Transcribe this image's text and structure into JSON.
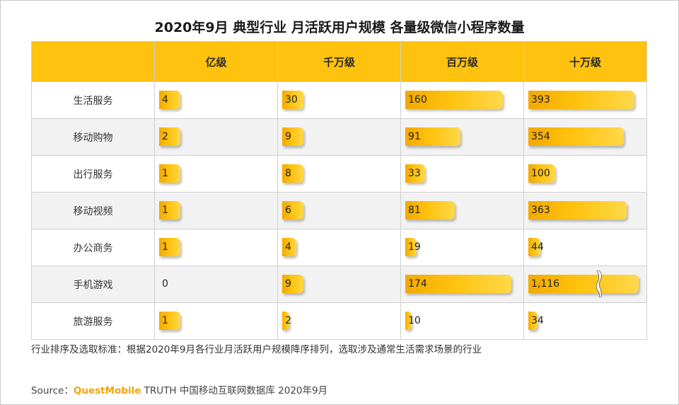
{
  "title": "2020年9月 典型行业 月活跃用户规模 各量级微信小程序数量",
  "chart_data": {
    "type": "table",
    "corner_label": "",
    "columns": [
      "亿级",
      "千万级",
      "百万级",
      "十万级"
    ],
    "rows": [
      {
        "category": "生活服务",
        "values": [
          4,
          30,
          160,
          393
        ],
        "labels": [
          "4",
          "30",
          "160",
          "393"
        ]
      },
      {
        "category": "移动购物",
        "values": [
          2,
          9,
          91,
          354
        ],
        "labels": [
          "2",
          "9",
          "91",
          "354"
        ]
      },
      {
        "category": "出行服务",
        "values": [
          1,
          8,
          33,
          100
        ],
        "labels": [
          "1",
          "8",
          "33",
          "100"
        ]
      },
      {
        "category": "移动视频",
        "values": [
          1,
          6,
          81,
          363
        ],
        "labels": [
          "1",
          "6",
          "81",
          "363"
        ]
      },
      {
        "category": "办公商务",
        "values": [
          1,
          4,
          19,
          44
        ],
        "labels": [
          "1",
          "4",
          "19",
          "44"
        ]
      },
      {
        "category": "手机游戏",
        "values": [
          0,
          9,
          174,
          1116
        ],
        "labels": [
          "0",
          "9",
          "174",
          "1,116"
        ]
      },
      {
        "category": "旅游服务",
        "values": [
          1,
          2,
          10,
          34
        ],
        "labels": [
          "1",
          "2",
          "10",
          "34"
        ]
      }
    ],
    "axis_break": {
      "row": 5,
      "col": 3
    }
  },
  "note": "行业排序及选取标准：根据2020年9月各行业月活跃用户规模降序排列，选取涉及通常生活需求场景的行业",
  "source": {
    "prefix": "Source：",
    "brand": "QuestMobile",
    "suffix": " TRUTH 中国移动互联网数据库 2020年9月"
  },
  "colors": {
    "header_bg": "#ffc20e",
    "bar": "#ffc20e",
    "brand": "#f5a400",
    "stripe": "#f2f2f2"
  }
}
